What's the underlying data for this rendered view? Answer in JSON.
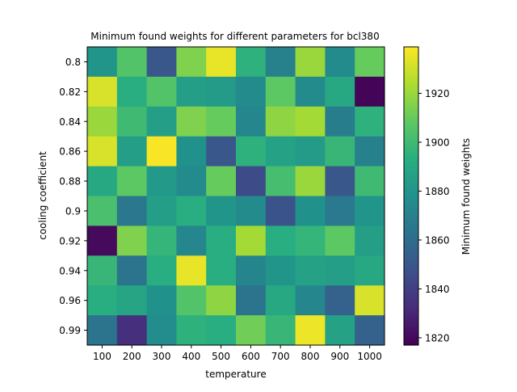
{
  "chart_data": {
    "type": "heatmap",
    "title": "Minimum found weights for different parameters for bcl380",
    "xlabel": "temperature",
    "ylabel": "cooling coefficient",
    "x_categories": [
      "100",
      "200",
      "300",
      "400",
      "500",
      "600",
      "700",
      "800",
      "900",
      "1000"
    ],
    "y_categories": [
      "0.8",
      "0.82",
      "0.84",
      "0.86",
      "0.88",
      "0.9",
      "0.92",
      "0.94",
      "0.96",
      "0.99"
    ],
    "values": [
      [
        1880,
        1905,
        1850,
        1915,
        1935,
        1895,
        1870,
        1920,
        1875,
        1910
      ],
      [
        1932,
        1893,
        1905,
        1885,
        1883,
        1875,
        1908,
        1875,
        1890,
        1818
      ],
      [
        1920,
        1900,
        1885,
        1915,
        1910,
        1873,
        1918,
        1922,
        1868,
        1895
      ],
      [
        1932,
        1885,
        1938,
        1878,
        1850,
        1895,
        1887,
        1883,
        1898,
        1870
      ],
      [
        1890,
        1908,
        1882,
        1875,
        1910,
        1845,
        1902,
        1920,
        1850,
        1900
      ],
      [
        1903,
        1865,
        1885,
        1893,
        1880,
        1875,
        1848,
        1878,
        1866,
        1880
      ],
      [
        1820,
        1915,
        1897,
        1873,
        1893,
        1922,
        1893,
        1897,
        1908,
        1885
      ],
      [
        1898,
        1863,
        1893,
        1935,
        1893,
        1872,
        1880,
        1887,
        1885,
        1890
      ],
      [
        1893,
        1888,
        1878,
        1905,
        1918,
        1863,
        1890,
        1873,
        1855,
        1932
      ],
      [
        1863,
        1833,
        1876,
        1895,
        1893,
        1912,
        1898,
        1936,
        1887,
        1855
      ]
    ],
    "colormap": "viridis",
    "vmin": 1817,
    "vmax": 1939,
    "colorbar": {
      "label": "Minimum found weights",
      "ticks": [
        "1820",
        "1840",
        "1860",
        "1880",
        "1900",
        "1920"
      ],
      "tick_values": [
        1820,
        1840,
        1860,
        1880,
        1900,
        1920
      ]
    }
  }
}
